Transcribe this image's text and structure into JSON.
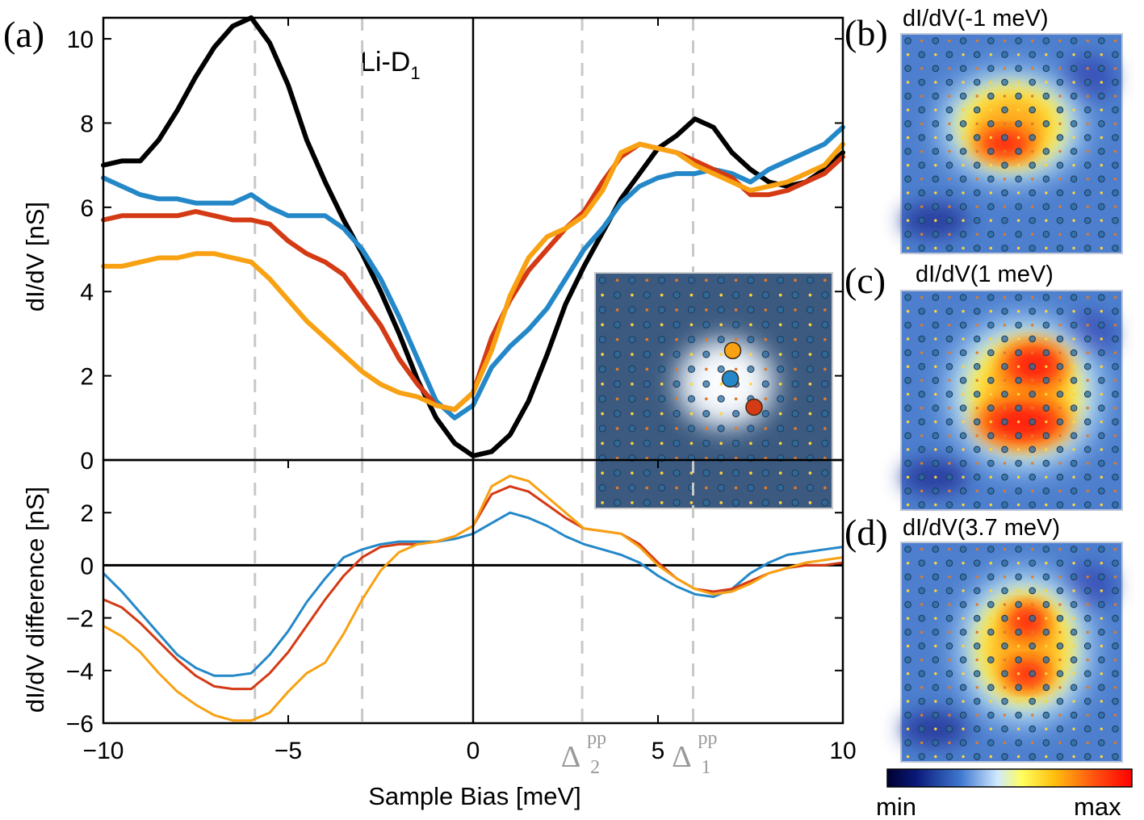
{
  "chart_data": [
    {
      "type": "line",
      "panel": "(a)",
      "annotation": "Li-D1",
      "annotation_main": "Li-D",
      "annotation_sub": "1",
      "ylabel": "dI/dV [nS]",
      "ylim": [
        0,
        10.5
      ],
      "yticks": [
        0,
        2,
        4,
        6,
        8,
        10
      ],
      "xlim": [
        -10,
        10
      ],
      "vertical_dashed_x": [
        -5.9,
        -3.0,
        2.95,
        5.95
      ],
      "series": [
        {
          "name": "black",
          "color": "#000000",
          "x": [
            -10,
            -9.5,
            -9,
            -8.5,
            -8,
            -7.5,
            -7,
            -6.5,
            -6,
            -5.5,
            -5,
            -4.5,
            -4,
            -3.5,
            -3,
            -2.5,
            -2,
            -1.5,
            -1,
            -0.5,
            0,
            0.5,
            1,
            1.5,
            2,
            2.5,
            3,
            3.5,
            4,
            4.5,
            5,
            5.5,
            6,
            6.5,
            7,
            7.5,
            8,
            8.5,
            9,
            9.5,
            10
          ],
          "y": [
            7.0,
            7.1,
            7.1,
            7.6,
            8.3,
            9.1,
            9.8,
            10.3,
            10.5,
            9.9,
            8.9,
            7.6,
            6.6,
            5.7,
            4.9,
            4.0,
            3.0,
            1.9,
            1.0,
            0.4,
            0.1,
            0.2,
            0.6,
            1.4,
            2.5,
            3.7,
            4.6,
            5.4,
            6.2,
            6.8,
            7.4,
            7.7,
            8.1,
            7.9,
            7.3,
            6.9,
            6.6,
            6.5,
            6.6,
            6.9,
            7.3
          ]
        },
        {
          "name": "blue",
          "color": "#2488c8",
          "x": [
            -10,
            -9.5,
            -9,
            -8.5,
            -8,
            -7.5,
            -7,
            -6.5,
            -6,
            -5.5,
            -5,
            -4.5,
            -4,
            -3.5,
            -3,
            -2.5,
            -2,
            -1.5,
            -1,
            -0.5,
            0,
            0.5,
            1,
            1.5,
            2,
            2.5,
            3,
            3.5,
            4,
            4.5,
            5,
            5.5,
            6,
            6.5,
            7,
            7.5,
            8,
            8.5,
            9,
            9.5,
            10
          ],
          "y": [
            6.7,
            6.5,
            6.3,
            6.2,
            6.2,
            6.1,
            6.1,
            6.1,
            6.3,
            6.0,
            5.8,
            5.8,
            5.8,
            5.5,
            5.0,
            4.3,
            3.4,
            2.4,
            1.4,
            1.0,
            1.3,
            2.2,
            2.7,
            3.1,
            3.6,
            4.3,
            5.0,
            5.5,
            6.1,
            6.5,
            6.7,
            6.8,
            6.8,
            6.9,
            6.8,
            6.6,
            6.9,
            7.1,
            7.3,
            7.5,
            7.9
          ]
        },
        {
          "name": "red",
          "color": "#d43a14",
          "x": [
            -10,
            -9.5,
            -9,
            -8.5,
            -8,
            -7.5,
            -7,
            -6.5,
            -6,
            -5.5,
            -5,
            -4.5,
            -4,
            -3.5,
            -3,
            -2.5,
            -2,
            -1.5,
            -1,
            -0.5,
            0,
            0.5,
            1,
            1.5,
            2,
            2.5,
            3,
            3.5,
            4,
            4.5,
            5,
            5.5,
            6,
            6.5,
            7,
            7.5,
            8,
            8.5,
            9,
            9.5,
            10
          ],
          "y": [
            5.7,
            5.8,
            5.8,
            5.8,
            5.8,
            5.9,
            5.8,
            5.7,
            5.7,
            5.6,
            5.2,
            4.9,
            4.7,
            4.4,
            3.8,
            3.2,
            2.4,
            1.8,
            1.3,
            1.2,
            1.6,
            2.9,
            3.8,
            4.5,
            5.0,
            5.5,
            5.9,
            6.6,
            7.2,
            7.5,
            7.4,
            7.3,
            7.1,
            6.9,
            6.7,
            6.3,
            6.3,
            6.4,
            6.6,
            6.8,
            7.2
          ]
        },
        {
          "name": "orange",
          "color": "#f8a112",
          "x": [
            -10,
            -9.5,
            -9,
            -8.5,
            -8,
            -7.5,
            -7,
            -6.5,
            -6,
            -5.5,
            -5,
            -4.5,
            -4,
            -3.5,
            -3,
            -2.5,
            -2,
            -1.5,
            -1,
            -0.5,
            0,
            0.5,
            1,
            1.5,
            2,
            2.5,
            3,
            3.5,
            4,
            4.5,
            5,
            5.5,
            6,
            6.5,
            7,
            7.5,
            8,
            8.5,
            9,
            9.5,
            10
          ],
          "y": [
            4.6,
            4.6,
            4.7,
            4.8,
            4.8,
            4.9,
            4.9,
            4.8,
            4.7,
            4.3,
            3.8,
            3.3,
            2.9,
            2.5,
            2.1,
            1.8,
            1.6,
            1.5,
            1.3,
            1.2,
            1.6,
            2.6,
            3.9,
            4.8,
            5.3,
            5.5,
            5.8,
            6.4,
            7.3,
            7.5,
            7.4,
            7.3,
            7.0,
            6.8,
            6.6,
            6.4,
            6.5,
            6.6,
            6.8,
            7.0,
            7.5
          ]
        }
      ]
    },
    {
      "type": "line",
      "ylabel": "dI/dV difference [nS]",
      "xlabel": "Sample Bias [meV]",
      "ylim": [
        -6,
        4
      ],
      "yticks": [
        -6,
        -4,
        -2,
        0,
        2
      ],
      "xlim": [
        -10,
        10
      ],
      "xticks": [
        -10,
        -5,
        0,
        5,
        10
      ],
      "gap_labels": [
        {
          "x": 2.95,
          "text": "Δ",
          "sub": "2",
          "sup": "pp"
        },
        {
          "x": 5.95,
          "text": "Δ",
          "sub": "1",
          "sup": "pp"
        }
      ],
      "series": [
        {
          "name": "blue",
          "color": "#2488c8",
          "x": [
            -10,
            -9.5,
            -9,
            -8.5,
            -8,
            -7.5,
            -7,
            -6.5,
            -6,
            -5.5,
            -5,
            -4.5,
            -4,
            -3.5,
            -3,
            -2.5,
            -2,
            -1.5,
            -1,
            -0.5,
            0,
            0.5,
            1,
            1.5,
            2,
            2.5,
            3,
            3.5,
            4,
            4.5,
            5,
            5.5,
            6,
            6.5,
            7,
            7.5,
            8,
            8.5,
            9,
            9.5,
            10
          ],
          "y": [
            -0.3,
            -1.0,
            -1.8,
            -2.6,
            -3.4,
            -3.9,
            -4.2,
            -4.2,
            -4.1,
            -3.4,
            -2.5,
            -1.4,
            -0.5,
            0.3,
            0.6,
            0.8,
            0.9,
            0.9,
            0.9,
            1.0,
            1.2,
            1.6,
            2.0,
            1.8,
            1.5,
            1.1,
            0.8,
            0.6,
            0.4,
            0.1,
            -0.4,
            -0.8,
            -1.1,
            -1.2,
            -0.9,
            -0.3,
            0.1,
            0.4,
            0.5,
            0.6,
            0.7
          ]
        },
        {
          "name": "red",
          "color": "#d43a14",
          "x": [
            -10,
            -9.5,
            -9,
            -8.5,
            -8,
            -7.5,
            -7,
            -6.5,
            -6,
            -5.5,
            -5,
            -4.5,
            -4,
            -3.5,
            -3,
            -2.5,
            -2,
            -1.5,
            -1,
            -0.5,
            0,
            0.5,
            1,
            1.5,
            2,
            2.5,
            3,
            3.5,
            4,
            4.5,
            5,
            5.5,
            6,
            6.5,
            7,
            7.5,
            8,
            8.5,
            9,
            9.5,
            10
          ],
          "y": [
            -1.3,
            -1.6,
            -2.2,
            -2.9,
            -3.6,
            -4.2,
            -4.6,
            -4.7,
            -4.7,
            -4.1,
            -3.3,
            -2.3,
            -1.3,
            -0.4,
            0.3,
            0.7,
            0.8,
            0.8,
            0.9,
            1.1,
            1.5,
            2.7,
            3.0,
            2.8,
            2.3,
            1.8,
            1.4,
            1.3,
            1.2,
            0.8,
            0.1,
            -0.5,
            -0.9,
            -1.0,
            -0.9,
            -0.6,
            -0.3,
            -0.1,
            0.0,
            0.0,
            0.1
          ]
        },
        {
          "name": "orange",
          "color": "#f8a112",
          "x": [
            -10,
            -9.5,
            -9,
            -8.5,
            -8,
            -7.5,
            -7,
            -6.5,
            -6,
            -5.5,
            -5,
            -4.5,
            -4,
            -3.5,
            -3,
            -2.5,
            -2,
            -1.5,
            -1,
            -0.5,
            0,
            0.5,
            1,
            1.5,
            2,
            2.5,
            3,
            3.5,
            4,
            4.5,
            5,
            5.5,
            6,
            6.5,
            7,
            7.5,
            8,
            8.5,
            9,
            9.5,
            10
          ],
          "y": [
            -2.3,
            -2.7,
            -3.3,
            -4.1,
            -4.8,
            -5.3,
            -5.7,
            -5.9,
            -5.9,
            -5.6,
            -4.8,
            -4.1,
            -3.7,
            -2.6,
            -1.3,
            -0.2,
            0.5,
            0.8,
            0.9,
            1.1,
            1.5,
            3.0,
            3.4,
            3.2,
            2.6,
            2.0,
            1.4,
            1.3,
            1.2,
            0.7,
            0.0,
            -0.5,
            -0.9,
            -1.1,
            -1.0,
            -0.7,
            -0.3,
            -0.1,
            0.1,
            0.2,
            0.3
          ]
        }
      ]
    },
    {
      "type": "heatmap",
      "panel": "(b)",
      "title": "dI/dV(-1 meV)",
      "blobs": [
        {
          "cx": 0.47,
          "cy": 0.5,
          "rx": 0.13,
          "ry": 0.06,
          "level": 1.0
        },
        {
          "cx": 0.5,
          "cy": 0.42,
          "rx": 0.28,
          "ry": 0.22,
          "level": 0.6
        }
      ]
    },
    {
      "type": "heatmap",
      "panel": "(c)",
      "title": "dI/dV(1 meV)",
      "blobs": [
        {
          "cx": 0.6,
          "cy": 0.34,
          "rx": 0.14,
          "ry": 0.09,
          "level": 1.0
        },
        {
          "cx": 0.55,
          "cy": 0.6,
          "rx": 0.2,
          "ry": 0.09,
          "level": 1.0
        },
        {
          "cx": 0.56,
          "cy": 0.47,
          "rx": 0.3,
          "ry": 0.3,
          "level": 0.65
        }
      ]
    },
    {
      "type": "heatmap",
      "panel": "(d)",
      "title": "dI/dV(3.7 meV)",
      "blobs": [
        {
          "cx": 0.57,
          "cy": 0.36,
          "rx": 0.09,
          "ry": 0.07,
          "level": 1.0
        },
        {
          "cx": 0.57,
          "cy": 0.6,
          "rx": 0.1,
          "ry": 0.06,
          "level": 1.0
        },
        {
          "cx": 0.56,
          "cy": 0.48,
          "rx": 0.26,
          "ry": 0.3,
          "level": 0.62
        }
      ]
    }
  ],
  "colorbar": {
    "min_label": "min",
    "max_label": "max"
  },
  "inset": {
    "markers": [
      {
        "name": "orange",
        "color": "#f8a112",
        "u": 0.58,
        "v": 0.33
      },
      {
        "name": "blue",
        "color": "#2488c8",
        "u": 0.57,
        "v": 0.45
      },
      {
        "name": "red",
        "color": "#d43a14",
        "u": 0.67,
        "v": 0.57
      }
    ]
  }
}
